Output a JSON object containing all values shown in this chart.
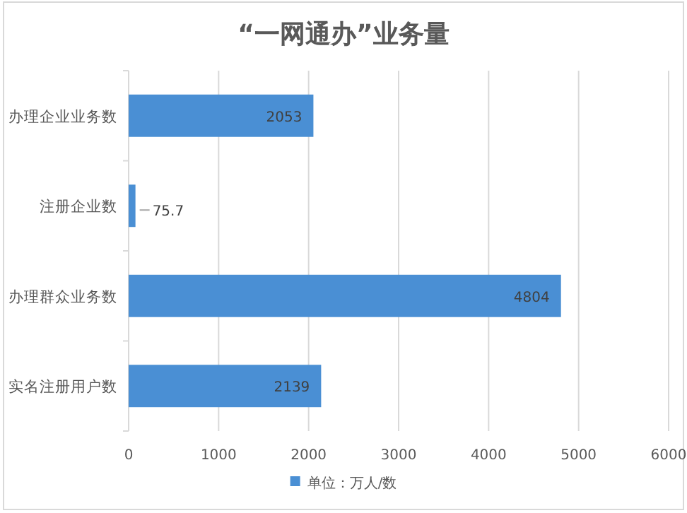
{
  "chart_data": {
    "type": "bar",
    "orientation": "horizontal",
    "title": "“一网通办”业务量",
    "categories": [
      "办理企业业务数",
      "注册企业数",
      "办理群众业务数",
      "实名注册用户数"
    ],
    "series": [
      {
        "name": "单位：万人/数",
        "color": "#4a8fd4",
        "values": [
          2053,
          75.7,
          4804,
          2139
        ]
      }
    ],
    "xlim": [
      0,
      6000
    ],
    "xticks": [
      0,
      1000,
      2000,
      3000,
      4000,
      5000,
      6000
    ],
    "grid": "x",
    "legend": "bottom",
    "data_labels": true
  }
}
